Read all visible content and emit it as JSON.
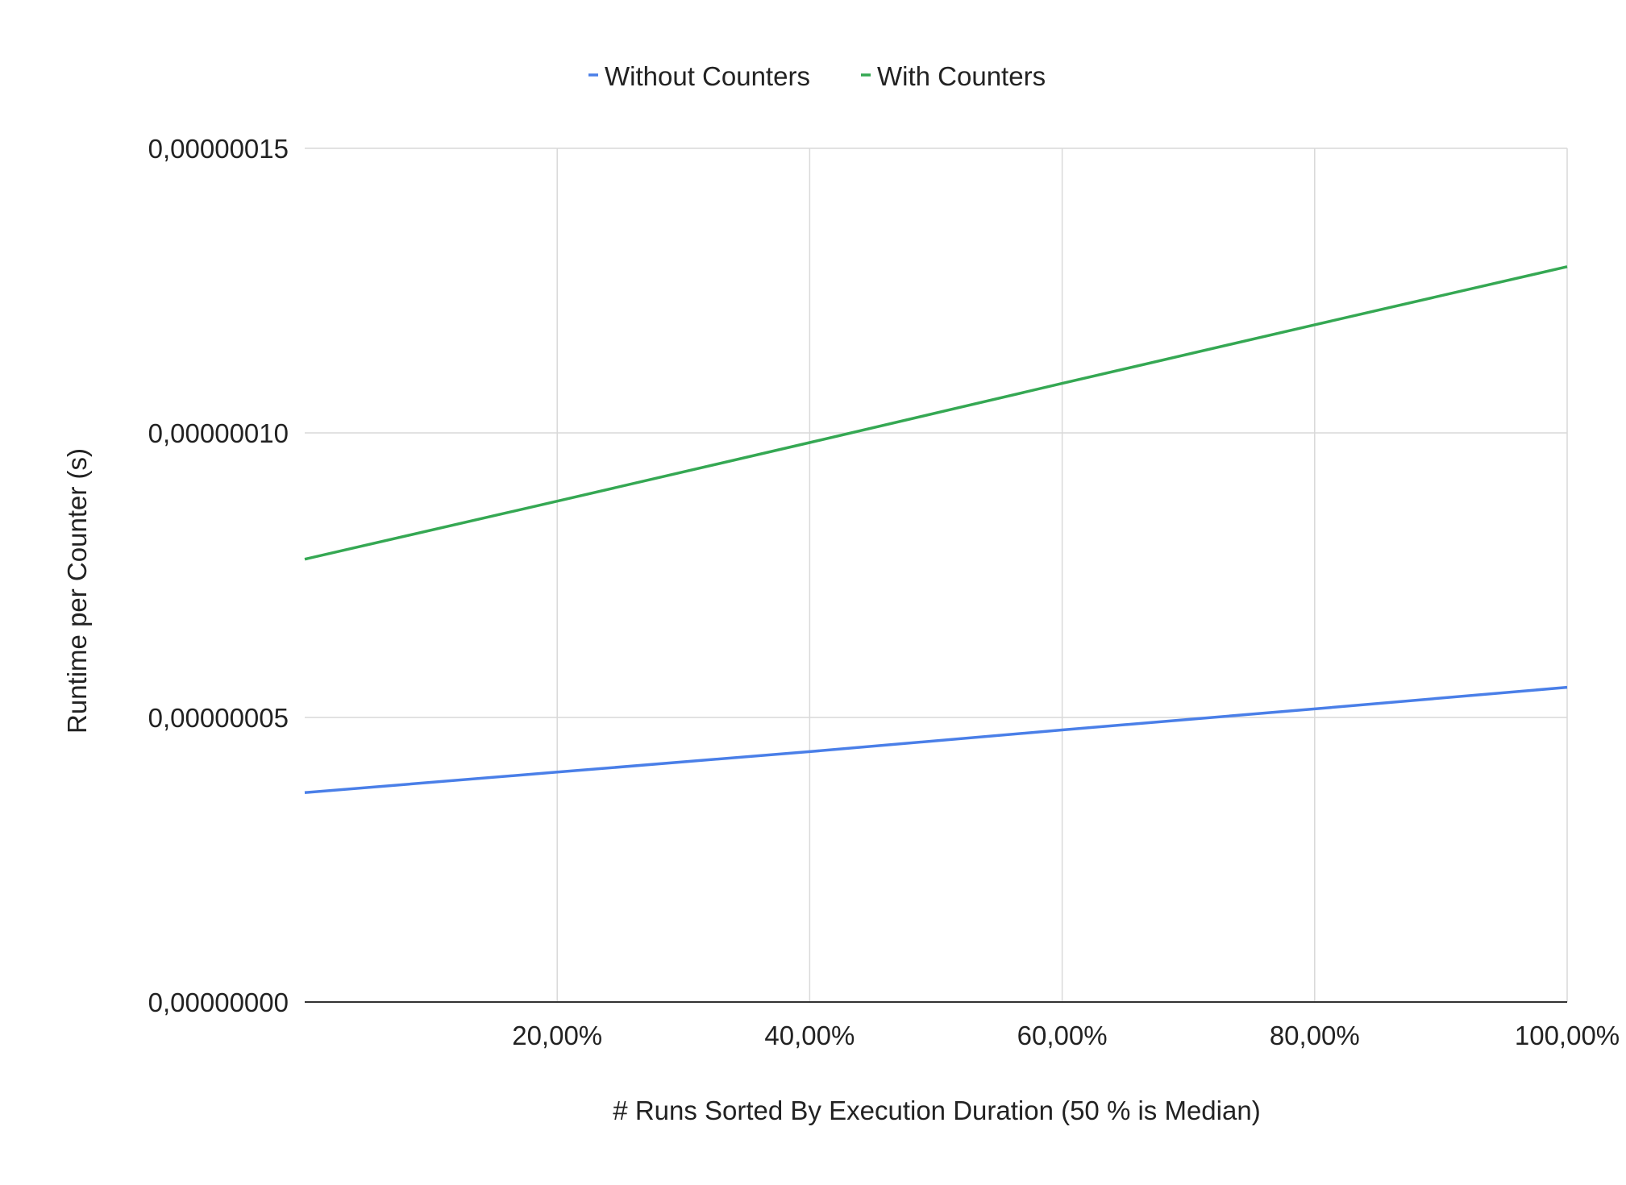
{
  "chart_data": {
    "type": "line",
    "xlabel": "# Runs Sorted By Execution Duration (50 % is Median)",
    "ylabel": "Runtime per Counter (s)",
    "xlim": [
      0,
      1
    ],
    "ylim": [
      0,
      1.5e-07
    ],
    "x_ticks": [
      0.2,
      0.4,
      0.6,
      0.8,
      1.0
    ],
    "x_tick_labels": [
      "20,00%",
      "40,00%",
      "60,00%",
      "80,00%",
      "100,00%"
    ],
    "y_ticks": [
      0,
      5e-08,
      1e-07,
      1.5e-07
    ],
    "y_tick_labels": [
      "0,00000000",
      "0,00000005",
      "0,00000010",
      "0,00000015"
    ],
    "grid": true,
    "legend": "top-center",
    "x": [
      0,
      0.2,
      0.4,
      0.6,
      0.8,
      1.0
    ],
    "series": [
      {
        "name": "Without Counters",
        "color": "#4a7fe8",
        "values": [
          3.68e-08,
          4.04e-08,
          4.4e-08,
          4.78e-08,
          5.15e-08,
          5.53e-08
        ]
      },
      {
        "name": "With Counters",
        "color": "#35a853",
        "values": [
          7.78e-08,
          8.8e-08,
          9.83e-08,
          1.087e-07,
          1.19e-07,
          1.292e-07
        ]
      }
    ]
  }
}
